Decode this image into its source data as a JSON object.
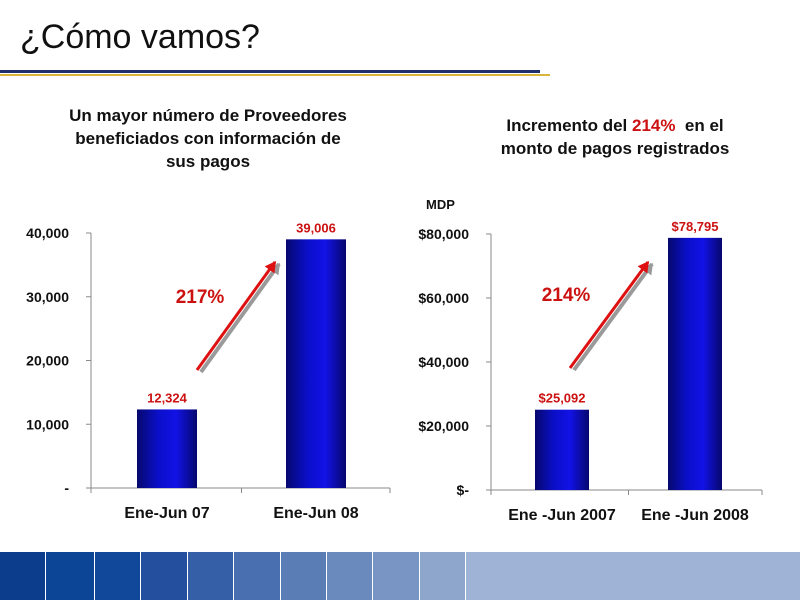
{
  "slide": {
    "title": "¿Cómo vamos?"
  },
  "charts": {
    "left": {
      "title_lines": [
        "Un mayor número de Proveedores",
        "beneficiados con información de",
        "sus pagos"
      ]
    },
    "right": {
      "title_pre": "Incremento del ",
      "title_highlight": "214%",
      "title_post": "  en el",
      "title_line2": "monto de pagos registrados",
      "unit": "MDP"
    }
  },
  "chart_data": [
    {
      "type": "bar",
      "title": "Un mayor número de Proveedores beneficiados con información de sus pagos",
      "categories": [
        "Ene-Jun 07",
        "Ene-Jun 08"
      ],
      "values": [
        12324,
        39006
      ],
      "value_labels": [
        "12,324",
        "39,006"
      ],
      "ylim": [
        0,
        40000
      ],
      "yticks": [
        0,
        10000,
        20000,
        30000,
        40000
      ],
      "ytick_labels": [
        "-",
        "10,000",
        "20,000",
        "30,000",
        "40,000"
      ],
      "annotation": "217%",
      "grid": false,
      "colors": {
        "bar": "#0a0fc8",
        "label": "#cc1111"
      }
    },
    {
      "type": "bar",
      "title": "Incremento del 214% en el monto de pagos registrados",
      "ylabel": "MDP",
      "categories": [
        "Ene -Jun 2007",
        "Ene -Jun 2008"
      ],
      "values": [
        25092,
        78795
      ],
      "value_labels": [
        "$25,092",
        "$78,795"
      ],
      "ylim": [
        0,
        80000
      ],
      "yticks": [
        0,
        20000,
        40000,
        60000,
        80000
      ],
      "ytick_labels": [
        "$-",
        "$20,000",
        "$40,000",
        "$60,000",
        "$80,000"
      ],
      "annotation": "214%",
      "grid": false,
      "colors": {
        "bar": "#0a0fc8",
        "label": "#cc1111"
      }
    }
  ],
  "footer": {
    "colors": [
      "#0b3d8c",
      "#0d4596",
      "#12489a",
      "#234f9e",
      "#3560a8",
      "#4a6fb0",
      "#5b7db6",
      "#6a8abe",
      "#7895c4",
      "#8ea5cc",
      "#9fb3d6"
    ]
  }
}
